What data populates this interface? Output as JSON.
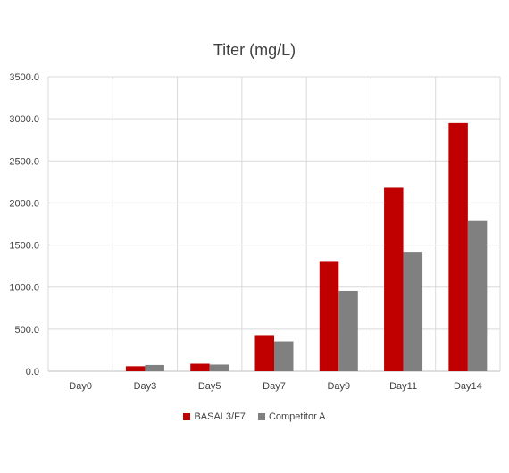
{
  "chart_data": {
    "type": "bar",
    "title": "Titer (mg/L)",
    "categories": [
      "Day0",
      "Day3",
      "Day5",
      "Day7",
      "Day9",
      "Day11",
      "Day14"
    ],
    "series": [
      {
        "name": "BASAL3/F7",
        "color": "#C00000",
        "values": [
          0,
          60,
          90,
          430,
          1300,
          2180,
          2950
        ]
      },
      {
        "name": "Competitor A",
        "color": "#808080",
        "values": [
          0,
          75,
          80,
          355,
          955,
          1420,
          1785
        ]
      }
    ],
    "ylim": [
      0,
      3500
    ],
    "yticks": [
      "0.0",
      "500.0",
      "1000.0",
      "1500.0",
      "2000.0",
      "2500.0",
      "3000.0",
      "3500.0"
    ],
    "grid": true,
    "legend": "bottom"
  }
}
